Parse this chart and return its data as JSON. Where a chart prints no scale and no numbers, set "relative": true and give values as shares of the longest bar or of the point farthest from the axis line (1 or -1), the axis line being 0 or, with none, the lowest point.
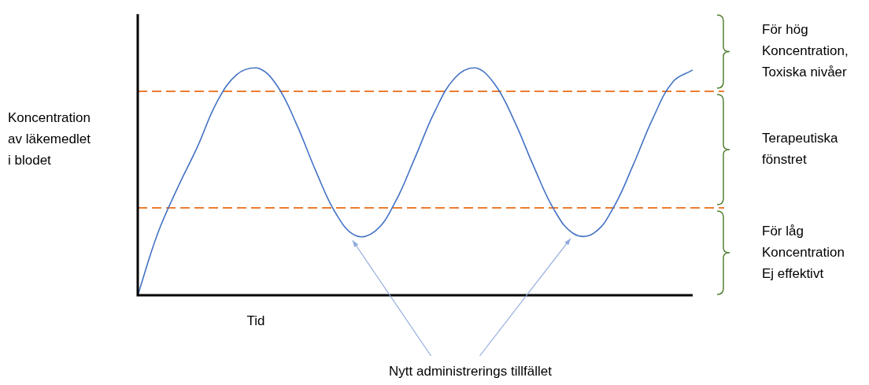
{
  "chart_data": {
    "type": "line",
    "relative": true,
    "ylabel": "Koncentration\nav läkemedlet\ni blodet",
    "xlabel": "Tid",
    "categories": [
      null,
      null,
      null,
      null,
      null,
      null,
      null,
      null,
      null,
      null,
      null,
      null,
      null,
      null,
      null,
      null,
      null,
      null,
      null,
      null,
      null,
      null,
      null,
      null,
      null,
      null,
      null,
      null,
      null
    ],
    "series": [
      {
        "color": "#4472c4",
        "values": [
          0,
          0.27,
          0.47,
          0.65,
          0.85,
          0.97,
          1.0,
          0.925,
          0.754,
          0.543,
          0.359,
          0.262,
          0.283,
          0.411,
          0.607,
          0.81,
          0.955,
          1.0,
          0.929,
          0.766,
          0.562,
          0.377,
          0.27,
          0.272,
          0.385,
          0.573,
          0.779,
          0.938,
          0.99
        ]
      }
    ],
    "marker": "none",
    "line_style": "solid",
    "legend": false,
    "ref_lines": [
      {
        "axis": "y",
        "value": 0.384,
        "color": "#ed7d31",
        "line_style": "dashed"
      },
      {
        "axis": "y",
        "value": 0.896,
        "color": "#ed7d31",
        "line_style": "dashed"
      }
    ],
    "annotations": [
      "För hög\nKoncentration,\nToxiska nivåer",
      "Terapeutiska\nfönstret",
      "För låg\nKoncentration\nEj effektivt",
      "Nytt administrerings tillfället"
    ]
  }
}
